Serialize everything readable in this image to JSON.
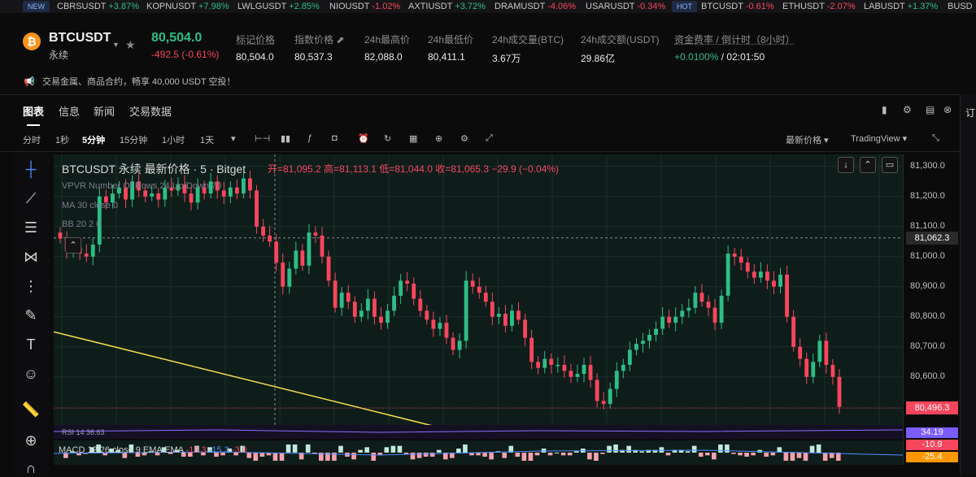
{
  "ticker": {
    "new_tag": "NEW",
    "hot_tag": "HOT",
    "items": [
      {
        "sym": "CBRSUSDT",
        "chg": "+3.87%",
        "dir": "pos"
      },
      {
        "sym": "KOPNUSDT",
        "chg": "+7.98%",
        "dir": "pos"
      },
      {
        "sym": "LWLGUSDT",
        "chg": "+2.85%",
        "dir": "pos"
      },
      {
        "sym": "NIOUSDT",
        "chg": "-1.02%",
        "dir": "neg"
      },
      {
        "sym": "AXTIUSDT",
        "chg": "+3.72%",
        "dir": "pos"
      },
      {
        "sym": "DRAMUSDT",
        "chg": "-4.06%",
        "dir": "neg"
      },
      {
        "sym": "USARUSDT",
        "chg": "-0.34%",
        "dir": "neg"
      },
      {
        "sym": "BTCUSDT",
        "chg": "-0.61%",
        "dir": "neg"
      },
      {
        "sym": "ETHUSDT",
        "chg": "-2.07%",
        "dir": "neg"
      },
      {
        "sym": "LABUSDT",
        "chg": "+1.37%",
        "dir": "pos"
      },
      {
        "sym": "BUSD",
        "chg": "",
        "dir": "pos"
      }
    ]
  },
  "header": {
    "coin_letter": "₿",
    "symbol": "BTCUSDT",
    "contract": "永续",
    "last_price": "80,504.0",
    "change": "-492.5 (-0.61%)",
    "stats": [
      {
        "k": "标记价格",
        "v": "80,504.0"
      },
      {
        "k": "指数价格 ⬈",
        "v": "80,537.3"
      },
      {
        "k": "24h最高价",
        "v": "82,088.0"
      },
      {
        "k": "24h最低价",
        "v": "80,411.1"
      },
      {
        "k": "24h成交量(BTC)",
        "v": "3.67万"
      },
      {
        "k": "24h成交额(USDT)",
        "v": "29.86亿"
      },
      {
        "k": "资金费率 / 倒计时（8小时）",
        "v": "+0.0100%",
        "v2": "/ 02:01:50"
      }
    ]
  },
  "notice": "交易金属、商品合约，畅享 40,000 USDT 空投！",
  "tabs": [
    "图表",
    "信息",
    "新闻",
    "交易数据"
  ],
  "toolbar": {
    "intervals": [
      "分时",
      "1秒",
      "5分钟",
      "15分钟",
      "1小时",
      "1天"
    ],
    "active_interval": "5分钟",
    "price_type": "最新价格 ▾",
    "view": "TradingView ▾"
  },
  "chart_data": {
    "type": "candlestick",
    "title": "BTCUSDT 永续 最新价格 · 5 · Bitget",
    "ohlc_label": "开=81,095.2 高=81,113.1 低=81,044.0 收=81,065.3 −29.9 (−0.04%)",
    "indicators": [
      "VPVR Number Of Rows 24 Up/Down 70",
      "MA 30 close 0",
      "BB 20 2 0",
      "RSI 14  36.63",
      "MACD 12 26 close 9 EMA EMA"
    ],
    "macd_values": {
      "macd": "-18.3",
      "signal": "-15.3",
      "hist": "-3.0"
    },
    "y_ticks": [
      81300,
      81200,
      81100,
      81000,
      80900,
      80800,
      80700,
      80600
    ],
    "y_tick_labels": [
      "81,300.0",
      "81,200.0",
      "81,100.0",
      "81,000.0",
      "80,900.0",
      "80,800.0",
      "80,700.0",
      "80,600.0"
    ],
    "ylim": [
      80440,
      81340
    ],
    "crosshair_price": "81,062.3",
    "crosshair_value": 81062.3,
    "last_price_label": "80,496.3",
    "last_price_value": 80496.3,
    "rsi_label": "34.19",
    "macd_labels": [
      "-10.9",
      "-25.4"
    ],
    "closes": [
      81060,
      81020,
      81030,
      81010,
      81000,
      81040,
      81200,
      81180,
      81210,
      81230,
      81190,
      81250,
      81220,
      81200,
      81210,
      81190,
      81230,
      81220,
      81240,
      81210,
      81180,
      81230,
      81210,
      81250,
      81220,
      81200,
      81230,
      81210,
      81260,
      81220,
      81100,
      81070,
      81050,
      80980,
      80900,
      80960,
      81020,
      80970,
      81080,
      81070,
      81000,
      80920,
      80830,
      80880,
      80850,
      80800,
      80820,
      80860,
      80800,
      80780,
      80820,
      80870,
      80920,
      80910,
      80860,
      80820,
      80790,
      80760,
      80780,
      80730,
      80690,
      80720,
      80920,
      80900,
      80880,
      80850,
      80800,
      80810,
      80770,
      80820,
      80790,
      80730,
      80650,
      80630,
      80660,
      80640,
      80640,
      80620,
      80600,
      80610,
      80640,
      80590,
      80520,
      80510,
      80560,
      80620,
      80640,
      80690,
      80710,
      80720,
      80740,
      80760,
      80800,
      80780,
      80800,
      80820,
      80830,
      80880,
      80850,
      80830,
      80780,
      80870,
      81010,
      81000,
      80980,
      80950,
      80930,
      80950,
      80920,
      80900,
      80940,
      80800,
      80700,
      80660,
      80600,
      80650,
      80720,
      80640,
      80600,
      80500
    ],
    "trend_line": {
      "start_value": 80750,
      "end_value": 80440
    }
  },
  "colors": {
    "up": "#2ebd85",
    "down": "#f6465d",
    "trend": "#f5e04a",
    "bg": "#0e1d1a"
  }
}
